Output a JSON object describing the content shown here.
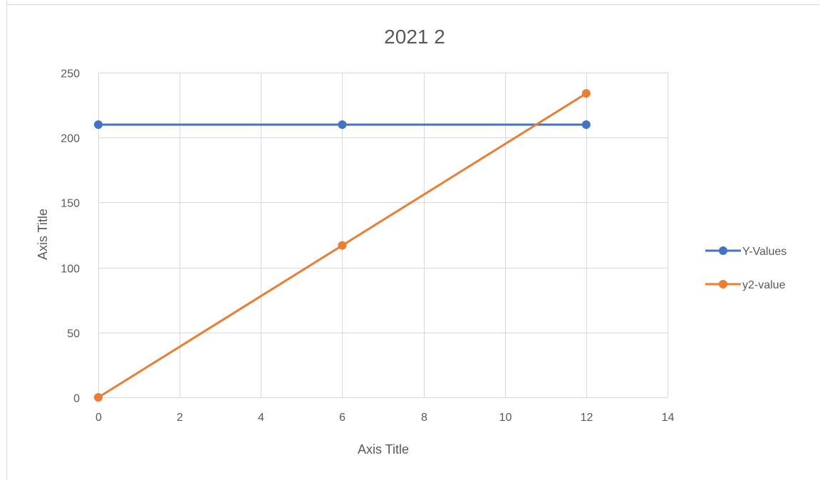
{
  "chart_data": {
    "type": "scatter",
    "title": "2021 2",
    "xlabel": "Axis Title",
    "ylabel": "Axis Title",
    "xlim": [
      0,
      14
    ],
    "ylim": [
      0,
      250
    ],
    "x_ticks": [
      0,
      2,
      4,
      6,
      8,
      10,
      12,
      14
    ],
    "y_ticks": [
      0,
      50,
      100,
      150,
      200,
      250
    ],
    "grid": true,
    "legend_position": "right",
    "series": [
      {
        "name": "Y-Values",
        "color": "#4472C4",
        "points": [
          [
            0,
            210
          ],
          [
            6,
            210
          ],
          [
            12,
            210
          ]
        ]
      },
      {
        "name": "y2-value",
        "color": "#ED7D31",
        "points": [
          [
            0,
            0
          ],
          [
            6,
            117
          ],
          [
            12,
            234
          ]
        ]
      }
    ]
  }
}
